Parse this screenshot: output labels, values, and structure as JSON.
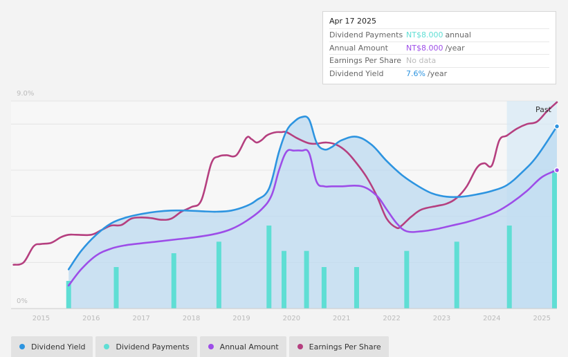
{
  "chart_data": {
    "type": "line",
    "title": "",
    "y_axis": {
      "top_label": "9.0%",
      "bottom_label": "0%",
      "ylim": [
        0,
        9
      ]
    },
    "x_axis": {
      "tick_labels": [
        "2015",
        "2016",
        "2017",
        "2018",
        "2019",
        "2020",
        "2021",
        "2022",
        "2023",
        "2024",
        "2025"
      ],
      "xlim": [
        2014.4,
        2025.3
      ]
    },
    "past_label": "Past",
    "past_region": {
      "from": 2024.3,
      "to": 2025.3
    },
    "series": [
      {
        "name": "Dividend Yield",
        "color": "#2d94e0",
        "x": [
          2015.55,
          2015.8,
          2016.1,
          2016.4,
          2016.7,
          2017.0,
          2017.3,
          2017.6,
          2017.9,
          2018.2,
          2018.5,
          2018.8,
          2019.1,
          2019.3,
          2019.55,
          2019.75,
          2019.9,
          2020.05,
          2020.2,
          2020.35,
          2020.5,
          2020.65,
          2020.8,
          2021.0,
          2021.3,
          2021.6,
          2021.9,
          2022.2,
          2022.5,
          2022.8,
          2023.1,
          2023.4,
          2023.7,
          2024.0,
          2024.3,
          2024.6,
          2024.9,
          2025.3
        ],
        "values": [
          1.7,
          2.5,
          3.2,
          3.7,
          3.95,
          4.1,
          4.2,
          4.25,
          4.25,
          4.22,
          4.2,
          4.25,
          4.45,
          4.7,
          5.2,
          6.8,
          7.7,
          8.1,
          8.3,
          8.2,
          7.2,
          6.9,
          7.0,
          7.3,
          7.45,
          7.1,
          6.4,
          5.8,
          5.35,
          5.0,
          4.85,
          4.85,
          4.95,
          5.1,
          5.35,
          5.9,
          6.6,
          7.9
        ]
      },
      {
        "name": "Dividend Payments",
        "color": "#5fded4",
        "x": [
          2015.55,
          2016.5,
          2017.65,
          2018.55,
          2019.55,
          2019.85,
          2020.3,
          2020.65,
          2021.3,
          2022.3,
          2023.3,
          2024.35,
          2025.3
        ],
        "values": [
          1.2,
          1.8,
          2.4,
          2.9,
          3.6,
          2.5,
          2.5,
          1.8,
          1.8,
          2.5,
          2.9,
          3.6,
          6.0
        ]
      },
      {
        "name": "Annual Amount",
        "color": "#9d4de8",
        "x": [
          2015.55,
          2015.8,
          2016.1,
          2016.4,
          2016.7,
          2017.0,
          2017.3,
          2017.7,
          2018.1,
          2018.5,
          2018.8,
          2019.1,
          2019.4,
          2019.6,
          2019.75,
          2019.9,
          2020.05,
          2020.2,
          2020.35,
          2020.5,
          2020.65,
          2020.8,
          2021.0,
          2021.4,
          2021.7,
          2021.9,
          2022.1,
          2022.3,
          2022.6,
          2022.9,
          2023.2,
          2023.5,
          2023.8,
          2024.1,
          2024.4,
          2024.7,
          2025.0,
          2025.3
        ],
        "values": [
          1.0,
          1.7,
          2.3,
          2.6,
          2.75,
          2.83,
          2.9,
          3.0,
          3.1,
          3.25,
          3.45,
          3.8,
          4.3,
          4.9,
          6.0,
          6.8,
          6.85,
          6.85,
          6.75,
          5.5,
          5.3,
          5.3,
          5.3,
          5.3,
          4.9,
          4.3,
          3.7,
          3.35,
          3.35,
          3.45,
          3.6,
          3.75,
          3.95,
          4.2,
          4.6,
          5.1,
          5.7,
          6.0
        ]
      },
      {
        "name": "Earnings Per Share",
        "color": "#b53f7f",
        "x": [
          2014.45,
          2014.65,
          2014.85,
          2015.0,
          2015.2,
          2015.4,
          2015.55,
          2015.7,
          2016.0,
          2016.2,
          2016.4,
          2016.6,
          2016.8,
          2017.0,
          2017.2,
          2017.4,
          2017.6,
          2017.8,
          2018.0,
          2018.2,
          2018.4,
          2018.55,
          2018.7,
          2018.9,
          2019.1,
          2019.2,
          2019.3,
          2019.4,
          2019.5,
          2019.6,
          2019.7,
          2019.8,
          2019.9,
          2020.1,
          2020.3,
          2020.4,
          2020.5,
          2020.7,
          2020.9,
          2021.1,
          2021.3,
          2021.5,
          2021.7,
          2021.9,
          2022.1,
          2022.2,
          2022.3,
          2022.4,
          2022.6,
          2022.9,
          2023.1,
          2023.3,
          2023.5,
          2023.7,
          2023.85,
          2024.0,
          2024.15,
          2024.3,
          2024.5,
          2024.7,
          2024.9,
          2025.1,
          2025.3
        ],
        "values": [
          1.9,
          2.0,
          2.7,
          2.8,
          2.85,
          3.1,
          3.2,
          3.2,
          3.2,
          3.4,
          3.6,
          3.62,
          3.9,
          3.95,
          3.92,
          3.85,
          3.9,
          4.2,
          4.4,
          4.7,
          6.3,
          6.6,
          6.65,
          6.65,
          7.4,
          7.35,
          7.2,
          7.3,
          7.5,
          7.6,
          7.65,
          7.65,
          7.65,
          7.4,
          7.2,
          7.15,
          7.15,
          7.2,
          7.1,
          6.8,
          6.3,
          5.7,
          4.9,
          3.9,
          3.5,
          3.6,
          3.8,
          4.0,
          4.3,
          4.45,
          4.55,
          4.8,
          5.3,
          6.1,
          6.3,
          6.2,
          7.3,
          7.5,
          7.8,
          8.0,
          8.1,
          8.55,
          8.95
        ]
      }
    ],
    "end_markers": [
      "Dividend Yield",
      "Annual Amount"
    ]
  },
  "tooltip": {
    "date": "Apr 17 2025",
    "rows": [
      {
        "label": "Dividend Payments",
        "value": "NT$8.000",
        "unit": "annual",
        "color": "#5fded4"
      },
      {
        "label": "Annual Amount",
        "value": "NT$8.000",
        "unit": "/year",
        "color": "#9d4de8"
      },
      {
        "label": "Earnings Per Share",
        "value": "No data",
        "unit": "",
        "color": "#bbbbbb"
      },
      {
        "label": "Dividend Yield",
        "value": "7.6%",
        "unit": "/year",
        "color": "#2d94e0"
      }
    ]
  },
  "legend": [
    {
      "label": "Dividend Yield",
      "color": "#2d94e0"
    },
    {
      "label": "Dividend Payments",
      "color": "#5fded4"
    },
    {
      "label": "Annual Amount",
      "color": "#9d4de8"
    },
    {
      "label": "Earnings Per Share",
      "color": "#b53f7f"
    }
  ]
}
